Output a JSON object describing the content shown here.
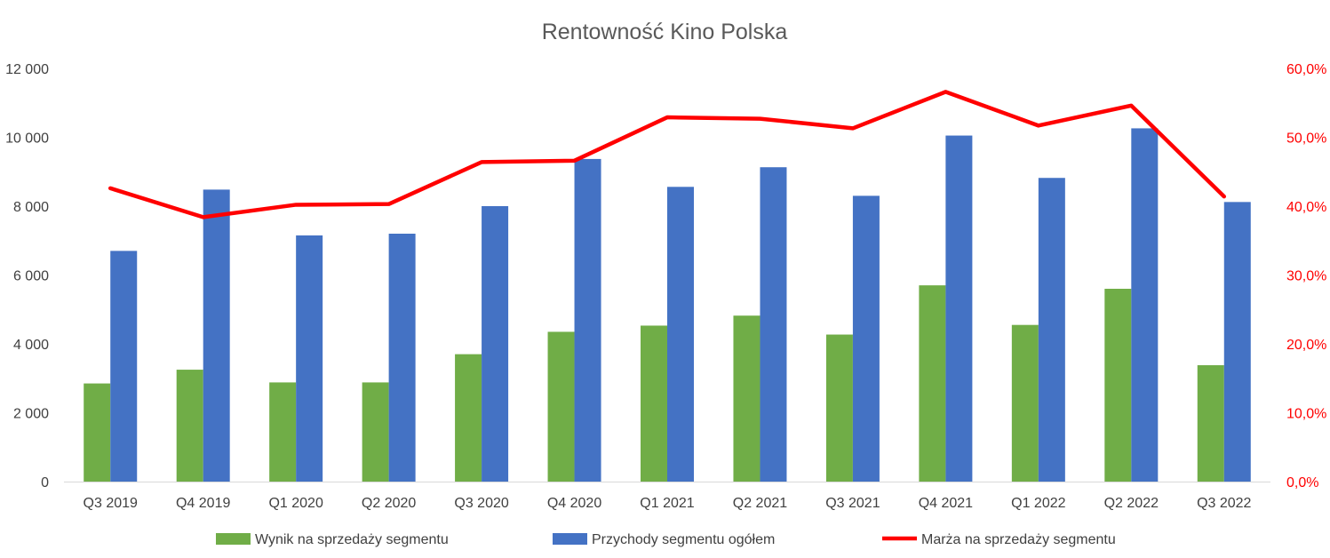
{
  "chart_data": {
    "type": "bar",
    "title": "Rentowność Kino Polska",
    "categories": [
      "Q3 2019",
      "Q4 2019",
      "Q1 2020",
      "Q2 2020",
      "Q3 2020",
      "Q4 2020",
      "Q1 2021",
      "Q2 2021",
      "Q3 2021",
      "Q4 2021",
      "Q1 2022",
      "Q2 2022",
      "Q3 2022"
    ],
    "series": [
      {
        "name": "Wynik na sprzedaży segmentu",
        "type": "bar",
        "axis": "left",
        "color": "#70ad47",
        "values": [
          2850,
          3250,
          2880,
          2880,
          3700,
          4350,
          4530,
          4820,
          4270,
          5700,
          4550,
          5600,
          3380
        ]
      },
      {
        "name": "Przychody segmentu ogółem",
        "type": "bar",
        "axis": "left",
        "color": "#4472c4",
        "values": [
          6700,
          8480,
          7150,
          7200,
          8000,
          9370,
          8560,
          9130,
          8300,
          10050,
          8820,
          10260,
          8120
        ]
      },
      {
        "name": "Marża na sprzedaży segmentu",
        "type": "line",
        "axis": "right",
        "color": "#ff0000",
        "values": [
          42.6,
          38.4,
          40.2,
          40.3,
          46.4,
          46.6,
          52.9,
          52.7,
          51.3,
          56.6,
          51.7,
          54.6,
          41.4
        ]
      }
    ],
    "y_left": {
      "ylim": [
        0,
        12000
      ],
      "ticks": [
        0,
        2000,
        4000,
        6000,
        8000,
        10000,
        12000
      ],
      "tick_labels": [
        "0",
        "2 000",
        "4 000",
        "6 000",
        "8 000",
        "10 000",
        "12 000"
      ]
    },
    "y_right": {
      "ylim": [
        0,
        60
      ],
      "ticks": [
        0,
        10,
        20,
        30,
        40,
        50,
        60
      ],
      "tick_labels": [
        "0,0%",
        "10,0%",
        "20,0%",
        "30,0%",
        "40,0%",
        "50,0%",
        "60,0%"
      ],
      "color": "#ff0000"
    },
    "xlabel": "",
    "ylabel": "",
    "grid": false,
    "legend": "bottom"
  }
}
